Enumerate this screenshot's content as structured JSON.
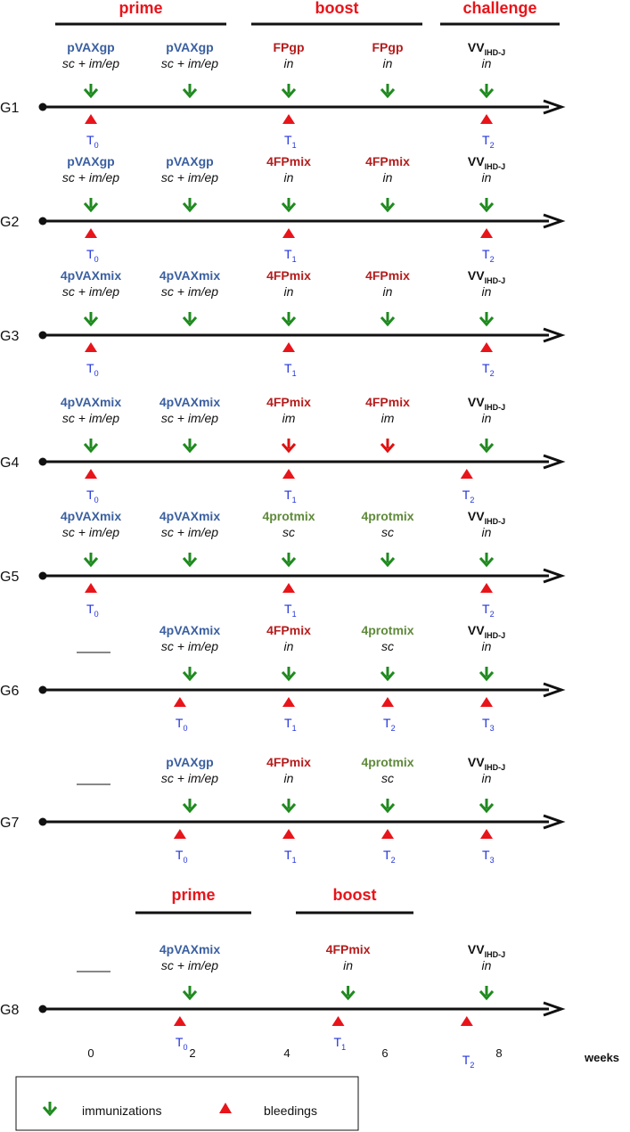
{
  "colors": {
    "blue": "#3a5fa0",
    "red": "#b51c1c",
    "green": "#5f8a3a",
    "black": "#111111",
    "arrow_green": "#1f8a1f",
    "arrow_red": "#e01010",
    "bleed": "#e8141a",
    "t_label": "#2233dd"
  },
  "phases_top": [
    {
      "label": "prime"
    },
    {
      "label": "boost"
    },
    {
      "label": "challenge"
    }
  ],
  "phases_g8": [
    {
      "label": "prime"
    },
    {
      "label": "boost"
    }
  ],
  "groups": [
    {
      "label": "G1",
      "immunizations": [
        {
          "name": "pVAXgp",
          "route": "sc + im/ep",
          "color": "blue",
          "arrow": "green",
          "week": 0
        },
        {
          "name": "pVAXgp",
          "route": "sc + im/ep",
          "color": "blue",
          "arrow": "green",
          "week": 2
        },
        {
          "name": "FPgp",
          "route": "in",
          "color": "red",
          "arrow": "green",
          "week": 4
        },
        {
          "name": "FPgp",
          "route": "in",
          "color": "red",
          "arrow": "green",
          "week": 6
        },
        {
          "name": "VV",
          "sub": "IHD-J",
          "route": "in",
          "color": "black",
          "arrow": "green",
          "week": 8
        }
      ],
      "bleedings": [
        {
          "label": "T",
          "sub": "0",
          "week": 0
        },
        {
          "label": "T",
          "sub": "1",
          "week": 4
        },
        {
          "label": "T",
          "sub": "2",
          "week": 8
        }
      ]
    },
    {
      "label": "G2",
      "immunizations": [
        {
          "name": "pVAXgp",
          "route": "sc + im/ep",
          "color": "blue",
          "arrow": "green",
          "week": 0
        },
        {
          "name": "pVAXgp",
          "route": "sc + im/ep",
          "color": "blue",
          "arrow": "green",
          "week": 2
        },
        {
          "name": "4FPmix",
          "route": "in",
          "color": "red",
          "arrow": "green",
          "week": 4
        },
        {
          "name": "4FPmix",
          "route": "in",
          "color": "red",
          "arrow": "green",
          "week": 6
        },
        {
          "name": "VV",
          "sub": "IHD-J",
          "route": "in",
          "color": "black",
          "arrow": "green",
          "week": 8
        }
      ],
      "bleedings": [
        {
          "label": "T",
          "sub": "0",
          "week": 0
        },
        {
          "label": "T",
          "sub": "1",
          "week": 4
        },
        {
          "label": "T",
          "sub": "2",
          "week": 8
        }
      ]
    },
    {
      "label": "G3",
      "immunizations": [
        {
          "name": "4pVAXmix",
          "route": "sc + im/ep",
          "color": "blue",
          "arrow": "green",
          "week": 0
        },
        {
          "name": "4pVAXmix",
          "route": "sc + im/ep",
          "color": "blue",
          "arrow": "green",
          "week": 2
        },
        {
          "name": "4FPmix",
          "route": "in",
          "color": "red",
          "arrow": "green",
          "week": 4
        },
        {
          "name": "4FPmix",
          "route": "in",
          "color": "red",
          "arrow": "green",
          "week": 6
        },
        {
          "name": "VV",
          "sub": "IHD-J",
          "route": "in",
          "color": "black",
          "arrow": "green",
          "week": 8
        }
      ],
      "bleedings": [
        {
          "label": "T",
          "sub": "0",
          "week": 0
        },
        {
          "label": "T",
          "sub": "1",
          "week": 4
        },
        {
          "label": "T",
          "sub": "2",
          "week": 8
        }
      ]
    },
    {
      "label": "G4",
      "immunizations": [
        {
          "name": "4pVAXmix",
          "route": "sc + im/ep",
          "color": "blue",
          "arrow": "green",
          "week": 0
        },
        {
          "name": "4pVAXmix",
          "route": "sc + im/ep",
          "color": "blue",
          "arrow": "green",
          "week": 2
        },
        {
          "name": "4FPmix",
          "route": "im",
          "color": "red",
          "arrow": "red",
          "week": 4
        },
        {
          "name": "4FPmix",
          "route": "im",
          "color": "red",
          "arrow": "red",
          "week": 6
        },
        {
          "name": "VV",
          "sub": "IHD-J",
          "route": "in",
          "color": "black",
          "arrow": "green",
          "week": 8
        }
      ],
      "bleedings": [
        {
          "label": "T",
          "sub": "0",
          "week": 0
        },
        {
          "label": "T",
          "sub": "1",
          "week": 4
        },
        {
          "label": "T",
          "sub": "2",
          "week": 7.6
        }
      ]
    },
    {
      "label": "G5",
      "immunizations": [
        {
          "name": "4pVAXmix",
          "route": "sc + im/ep",
          "color": "blue",
          "arrow": "green",
          "week": 0
        },
        {
          "name": "4pVAXmix",
          "route": "sc + im/ep",
          "color": "blue",
          "arrow": "green",
          "week": 2
        },
        {
          "name": "4protmix",
          "route": "sc",
          "color": "green",
          "arrow": "green",
          "week": 4
        },
        {
          "name": "4protmix",
          "route": "sc",
          "color": "green",
          "arrow": "green",
          "week": 6
        },
        {
          "name": "VV",
          "sub": "IHD-J",
          "route": "in",
          "color": "black",
          "arrow": "green",
          "week": 8
        }
      ],
      "bleedings": [
        {
          "label": "T",
          "sub": "0",
          "week": 0
        },
        {
          "label": "T",
          "sub": "1",
          "week": 4
        },
        {
          "label": "T",
          "sub": "2",
          "week": 8
        }
      ]
    },
    {
      "label": "G6",
      "dash": true,
      "immunizations": [
        {
          "name": "4pVAXmix",
          "route": "sc + im/ep",
          "color": "blue",
          "arrow": "green",
          "week": 2
        },
        {
          "name": "4FPmix",
          "route": "in",
          "color": "red",
          "arrow": "green",
          "week": 4
        },
        {
          "name": "4protmix",
          "route": "sc",
          "color": "green",
          "arrow": "green",
          "week": 6
        },
        {
          "name": "VV",
          "sub": "IHD-J",
          "route": "in",
          "color": "black",
          "arrow": "green",
          "week": 8
        }
      ],
      "bleedings": [
        {
          "label": "T",
          "sub": "0",
          "week": 1.8
        },
        {
          "label": "T",
          "sub": "1",
          "week": 4
        },
        {
          "label": "T",
          "sub": "2",
          "week": 6
        },
        {
          "label": "T",
          "sub": "3",
          "week": 8
        }
      ]
    },
    {
      "label": "G7",
      "dash": true,
      "immunizations": [
        {
          "name": "pVAXgp",
          "route": "sc + im/ep",
          "color": "blue",
          "arrow": "green",
          "week": 2
        },
        {
          "name": "4FPmix",
          "route": "in",
          "color": "red",
          "arrow": "green",
          "week": 4
        },
        {
          "name": "4protmix",
          "route": "sc",
          "color": "green",
          "arrow": "green",
          "week": 6
        },
        {
          "name": "VV",
          "sub": "IHD-J",
          "route": "in",
          "color": "black",
          "arrow": "green",
          "week": 8
        }
      ],
      "bleedings": [
        {
          "label": "T",
          "sub": "0",
          "week": 1.8
        },
        {
          "label": "T",
          "sub": "1",
          "week": 4
        },
        {
          "label": "T",
          "sub": "2",
          "week": 6
        },
        {
          "label": "T",
          "sub": "3",
          "week": 8
        }
      ]
    },
    {
      "label": "G8",
      "dash": true,
      "immunizations": [
        {
          "name": "4pVAXmix",
          "route": "sc + im/ep",
          "color": "blue",
          "arrow": "green",
          "week": 2
        },
        {
          "name": "4FPmix",
          "route": "in",
          "color": "red",
          "arrow": "green",
          "week": 5.2
        },
        {
          "name": "VV",
          "sub": "IHD-J",
          "route": "in",
          "color": "black",
          "arrow": "green",
          "week": 8
        }
      ],
      "bleedings": [
        {
          "label": "T",
          "sub": "0",
          "week": 1.8
        },
        {
          "label": "T",
          "sub": "1",
          "week": 5
        },
        {
          "label": "T",
          "sub": "2",
          "week": 7.6,
          "low": true
        }
      ]
    }
  ],
  "axis": {
    "ticks": [
      "0",
      "2",
      "4",
      "6",
      "8"
    ],
    "unit": "weeks"
  },
  "legend": {
    "immunizations": "immunizations",
    "bleedings": "bleedings"
  }
}
